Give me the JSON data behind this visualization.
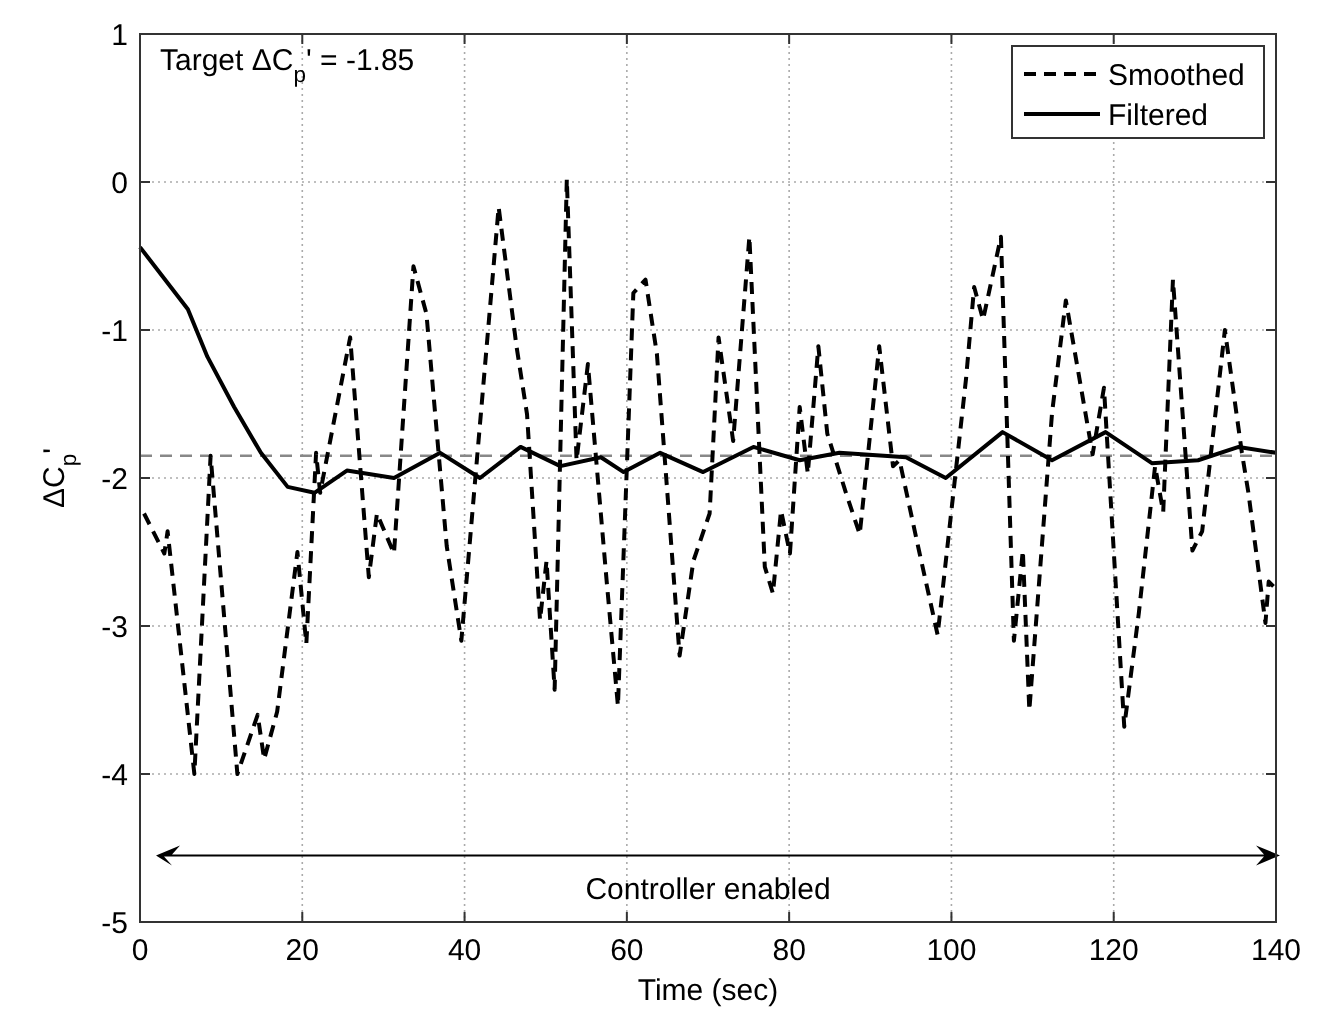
{
  "chart_data": {
    "type": "line",
    "xlabel": "Time (sec)",
    "ylabel": "ΔC$_{p}$'",
    "xlim": [
      0,
      140
    ],
    "xticks": [
      0,
      20,
      40,
      60,
      80,
      100,
      120,
      140
    ],
    "ylim": [
      -5,
      1
    ],
    "yticks": [
      -5,
      -4,
      -3,
      -2,
      -1,
      0,
      1
    ],
    "grid": true,
    "legend": "top right",
    "annotations": [
      "Target ΔC$_{p}$' = -1.85",
      "Controller enabled"
    ],
    "ref_lines": [
      {
        "axis": "y",
        "value": -1.85,
        "color": "#888888",
        "line_style": "dashed"
      }
    ],
    "series": [
      {
        "name": "Smoothed",
        "color": "#000000",
        "line_style": "dashed",
        "x": [
          0.5,
          3,
          3.4,
          6.7,
          8.7,
          12,
          14.5,
          15.3,
          16.9,
          19.4,
          20.5,
          21.7,
          22.2,
          25.9,
          28.2,
          29.2,
          31.3,
          33.7,
          35.3,
          37.8,
          39.6,
          44.2,
          46.4,
          47.7,
          49.3,
          50.1,
          51.1,
          52.6,
          53.8,
          55.2,
          57.5,
          58.9,
          60.8,
          62.3,
          63.7,
          66.5,
          68.2,
          70.2,
          71.3,
          73.1,
          75.1,
          77.0,
          78.0,
          79.0,
          80.1,
          81.3,
          82.3,
          83.6,
          84.7,
          87.0,
          88.7,
          91.1,
          92.8,
          93.6,
          96.0,
          98.3,
          101.8,
          102.8,
          103.9,
          106.1,
          107.7,
          108.8,
          109.6,
          112.4,
          114.1,
          117.4,
          118.8,
          121.3,
          123.1,
          125.1,
          126.1,
          127.3,
          129.7,
          130.9,
          133.7,
          135.8,
          136.6,
          138.7,
          139.1,
          140
        ],
        "values": [
          -2.24,
          -2.51,
          -2.36,
          -4.0,
          -1.85,
          -4.0,
          -3.6,
          -3.9,
          -3.58,
          -2.5,
          -3.12,
          -1.83,
          -2.1,
          -1.05,
          -2.67,
          -2.24,
          -2.51,
          -0.57,
          -0.89,
          -2.46,
          -3.1,
          -0.17,
          -1.11,
          -1.57,
          -2.96,
          -2.56,
          -3.43,
          0.02,
          -1.88,
          -1.23,
          -2.69,
          -3.54,
          -0.75,
          -0.66,
          -1.16,
          -3.2,
          -2.56,
          -2.24,
          -1.05,
          -1.75,
          -0.37,
          -2.6,
          -2.78,
          -2.22,
          -2.51,
          -1.52,
          -1.97,
          -1.11,
          -1.7,
          -2.1,
          -2.38,
          -1.11,
          -1.92,
          -1.88,
          -2.49,
          -3.06,
          -1.33,
          -0.71,
          -0.93,
          -0.37,
          -3.1,
          -2.49,
          -3.57,
          -1.56,
          -0.8,
          -1.84,
          -1.39,
          -3.68,
          -2.91,
          -1.92,
          -2.23,
          -0.66,
          -2.49,
          -2.36,
          -1.0,
          -1.83,
          -2.1,
          -2.98,
          -2.7,
          -2.75
        ]
      },
      {
        "name": "Filtered",
        "color": "#000000",
        "line_style": "solid",
        "x": [
          0,
          5.9,
          8.3,
          11.6,
          14.9,
          18.2,
          21.5,
          25.5,
          31.3,
          37.0,
          41.9,
          46.9,
          51.8,
          56.8,
          59.6,
          64.1,
          69.4,
          75.6,
          81.3,
          86.2,
          94.4,
          99.3,
          106.3,
          112.4,
          119.0,
          124.7,
          130.4,
          135.4,
          140
        ],
        "values": [
          -0.44,
          -0.86,
          -1.18,
          -1.52,
          -1.83,
          -2.06,
          -2.1,
          -1.95,
          -2.0,
          -1.83,
          -2.0,
          -1.79,
          -1.92,
          -1.86,
          -1.96,
          -1.83,
          -1.96,
          -1.79,
          -1.88,
          -1.83,
          -1.86,
          -2.0,
          -1.69,
          -1.88,
          -1.69,
          -1.9,
          -1.88,
          -1.79,
          -1.83
        ]
      }
    ]
  }
}
